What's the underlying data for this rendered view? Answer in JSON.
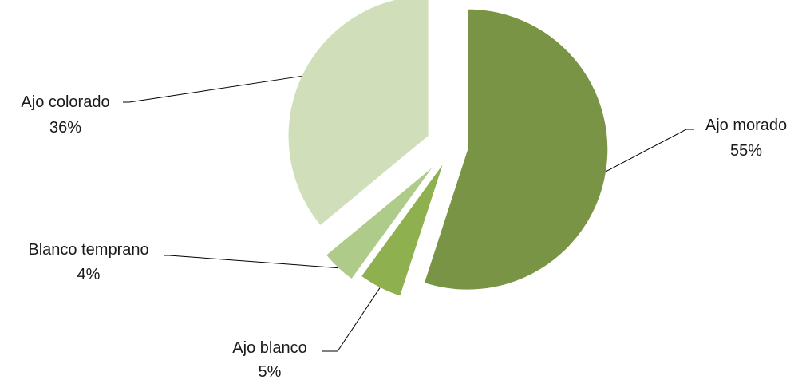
{
  "chart_data": {
    "type": "pie",
    "title": "",
    "exploded": true,
    "legend": "none",
    "slices": [
      {
        "name": "Ajo morado",
        "value": 55,
        "label": "55%",
        "color": "#7A9446"
      },
      {
        "name": "Ajo blanco",
        "value": 5,
        "label": "5%",
        "color": "#8FB04F"
      },
      {
        "name": "Blanco temprano",
        "value": 4,
        "label": "4%",
        "color": "#AECB8A"
      },
      {
        "name": "Ajo colorado",
        "value": 36,
        "label": "36%",
        "color": "#D0DEB9"
      }
    ]
  }
}
